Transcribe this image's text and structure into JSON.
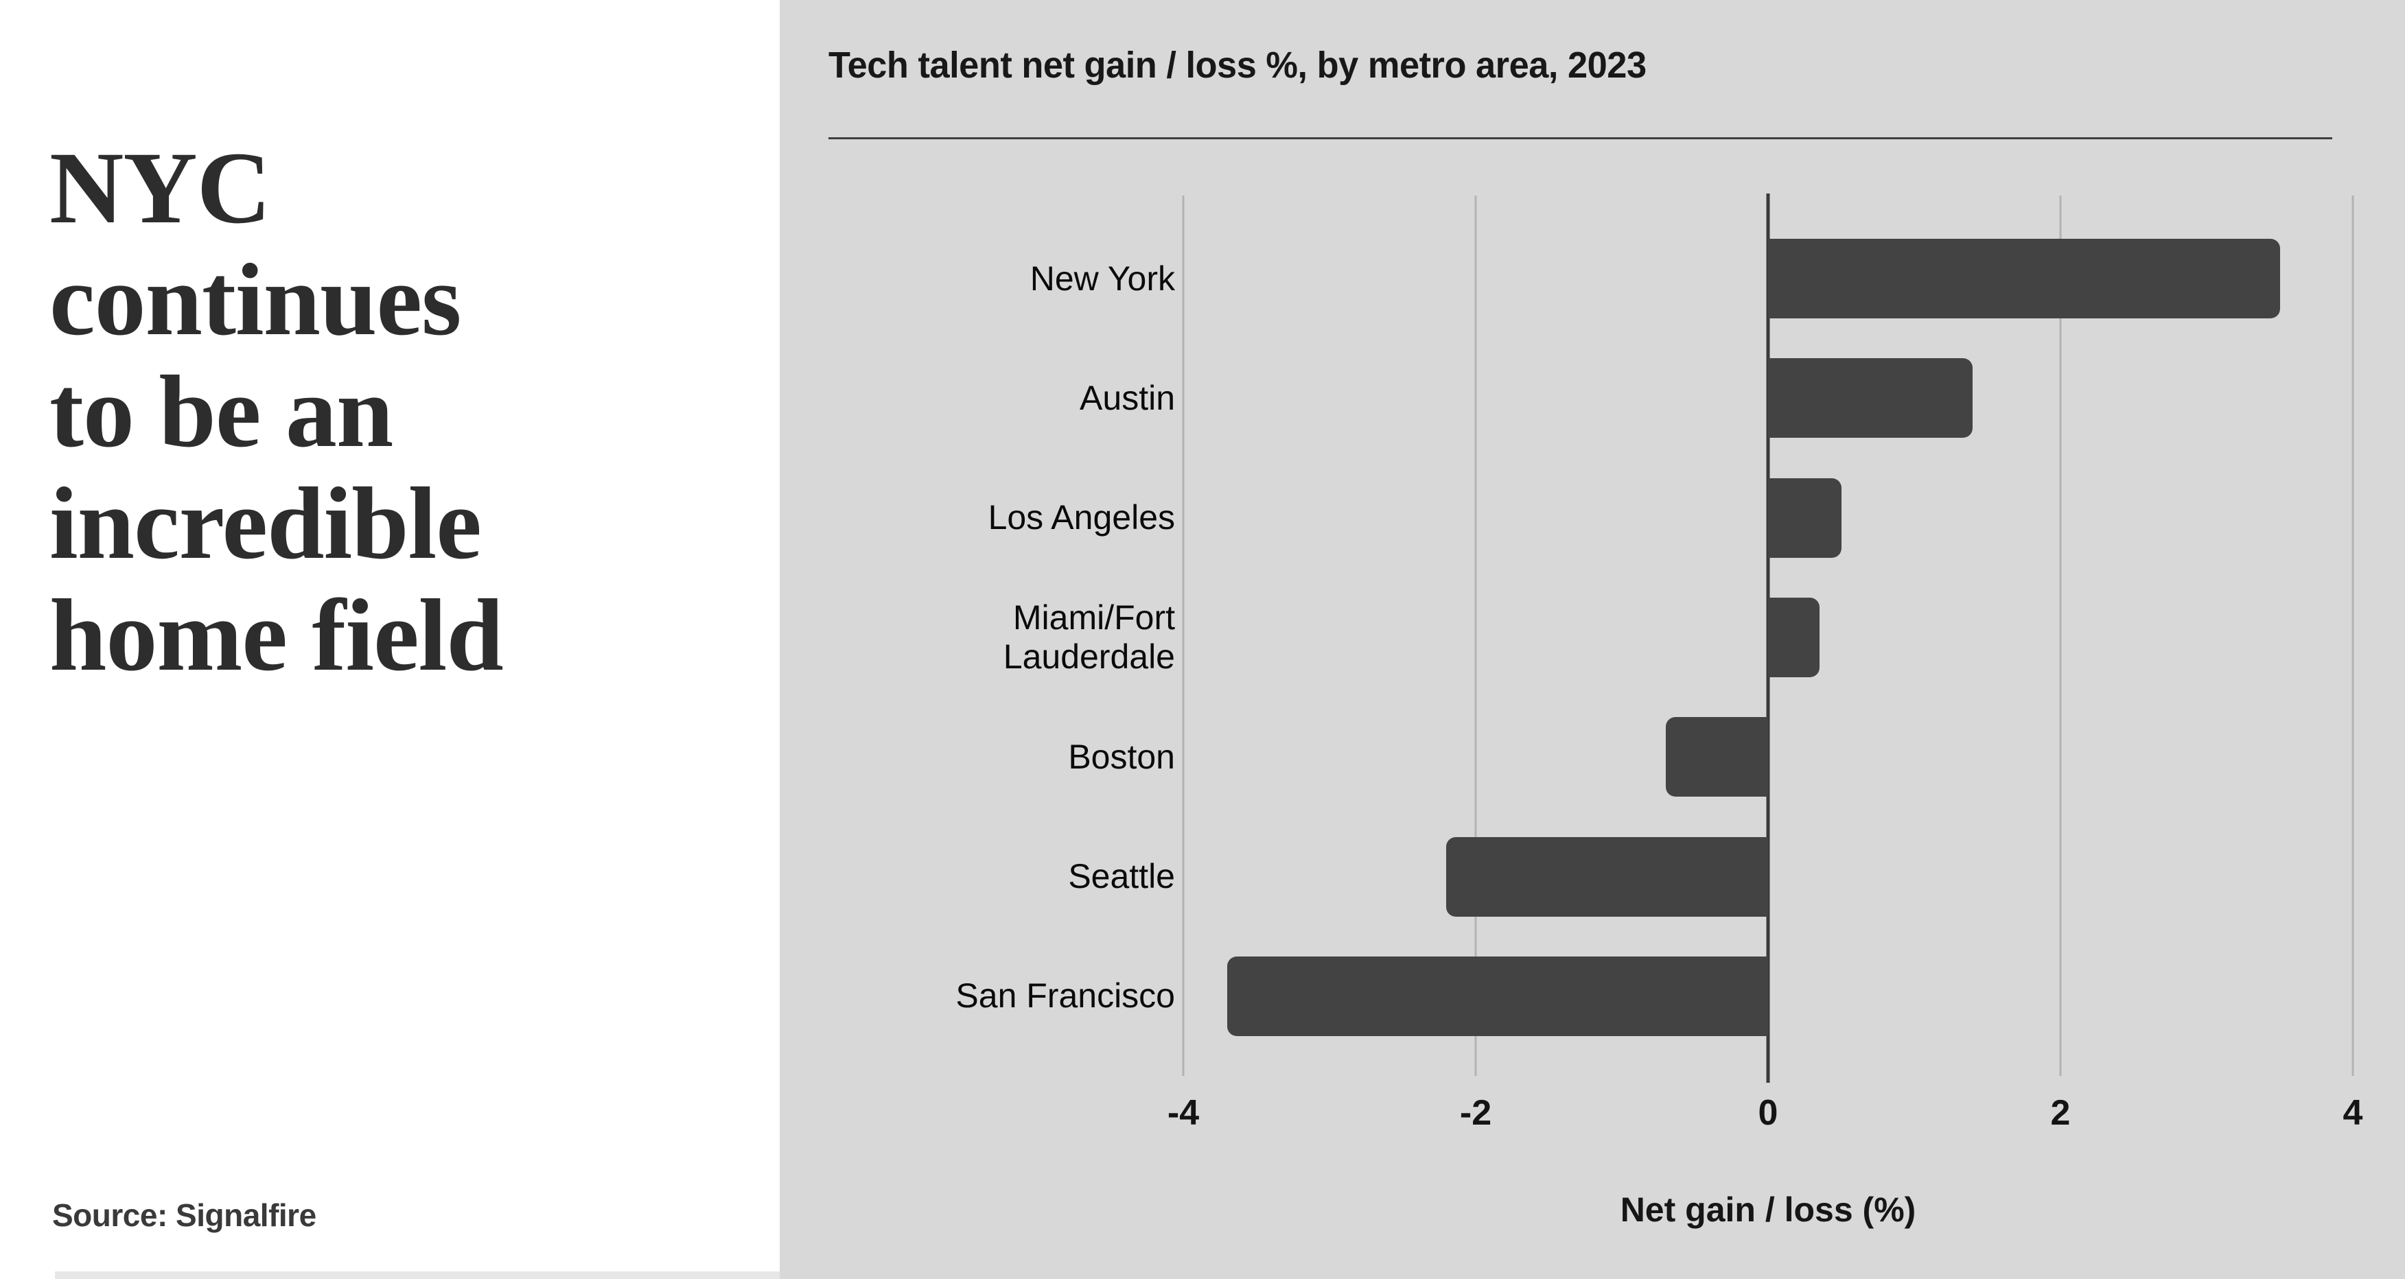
{
  "left_panel": {
    "headline_lines": [
      "NYC",
      "continues",
      "to be an",
      "incredible",
      "home field"
    ],
    "source_label": "Source: Signalfire"
  },
  "colors": {
    "right_panel_bg": "#d8d8d8",
    "bar": "#434343",
    "gridline": "#b3b3b3",
    "zero_line": "#3a3a3a",
    "headline_text": "#2d2d2d"
  },
  "chart_data": {
    "type": "bar",
    "orientation": "horizontal",
    "title": "Tech talent net gain / loss %, by metro area, 2023",
    "categories": [
      "New York",
      "Austin",
      "Los Angeles",
      "Miami/Fort Lauderdale",
      "Boston",
      "Seattle",
      "San Francisco"
    ],
    "values": [
      3.5,
      1.4,
      0.5,
      0.35,
      -0.7,
      -2.2,
      -3.7
    ],
    "xlabel": "Net gain / loss (%)",
    "xlim": [
      -4,
      4
    ],
    "xticks": [
      -4,
      -2,
      0,
      2,
      4
    ],
    "xtick_labels": [
      "-4",
      "-2",
      "0",
      "2",
      "4"
    ],
    "grid": "vertical-gridlines",
    "legend": "none"
  }
}
